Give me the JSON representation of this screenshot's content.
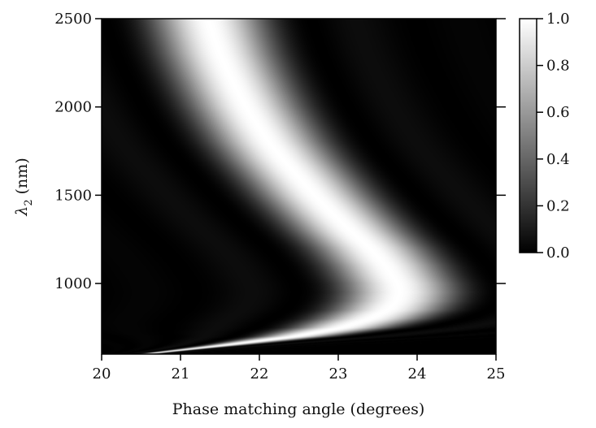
{
  "chart_data": {
    "type": "heatmap",
    "title": "",
    "xlabel": "Phase matching angle (degrees)",
    "ylabel_main": "λ",
    "ylabel_sub": "2",
    "ylabel_unit": " (nm)",
    "xlim": [
      20,
      25
    ],
    "ylim": [
      600,
      2500
    ],
    "x_ticks": [
      {
        "value": 20,
        "label": "20"
      },
      {
        "value": 21,
        "label": "21"
      },
      {
        "value": 22,
        "label": "22"
      },
      {
        "value": 23,
        "label": "23"
      },
      {
        "value": 24,
        "label": "24"
      },
      {
        "value": 25,
        "label": "25"
      }
    ],
    "y_ticks": [
      {
        "value": 1000,
        "label": "1000"
      },
      {
        "value": 1500,
        "label": "1500"
      },
      {
        "value": 2000,
        "label": "2000"
      },
      {
        "value": 2500,
        "label": "2500"
      }
    ],
    "colorbar": {
      "range": [
        0,
        1
      ],
      "ticks": [
        {
          "value": 0.0,
          "label": "0.0"
        },
        {
          "value": 0.2,
          "label": "0.2"
        },
        {
          "value": 0.4,
          "label": "0.4"
        },
        {
          "value": 0.6,
          "label": "0.6"
        },
        {
          "value": 0.8,
          "label": "0.8"
        },
        {
          "value": 1.0,
          "label": "1.0"
        }
      ],
      "colors": [
        "#000000",
        "#ffffff"
      ]
    },
    "peak_curve": [
      {
        "lambda": 600,
        "angle": 20.55
      },
      {
        "lambda": 650,
        "angle": 21.55
      },
      {
        "lambda": 700,
        "angle": 22.45
      },
      {
        "lambda": 750,
        "angle": 23.05
      },
      {
        "lambda": 800,
        "angle": 23.4
      },
      {
        "lambda": 850,
        "angle": 23.63
      },
      {
        "lambda": 900,
        "angle": 23.74
      },
      {
        "lambda": 950,
        "angle": 23.78
      },
      {
        "lambda": 1000,
        "angle": 23.75
      },
      {
        "lambda": 1100,
        "angle": 23.6
      },
      {
        "lambda": 1200,
        "angle": 23.4
      },
      {
        "lambda": 1300,
        "angle": 23.15
      },
      {
        "lambda": 1400,
        "angle": 22.92
      },
      {
        "lambda": 1500,
        "angle": 22.7
      },
      {
        "lambda": 1600,
        "angle": 22.5
      },
      {
        "lambda": 1700,
        "angle": 22.3
      },
      {
        "lambda": 1800,
        "angle": 22.12
      },
      {
        "lambda": 1900,
        "angle": 21.97
      },
      {
        "lambda": 2000,
        "angle": 21.83
      },
      {
        "lambda": 2100,
        "angle": 21.71
      },
      {
        "lambda": 2200,
        "angle": 21.6
      },
      {
        "lambda": 2300,
        "angle": 21.5
      },
      {
        "lambda": 2400,
        "angle": 21.42
      },
      {
        "lambda": 2500,
        "angle": 21.35
      }
    ]
  }
}
